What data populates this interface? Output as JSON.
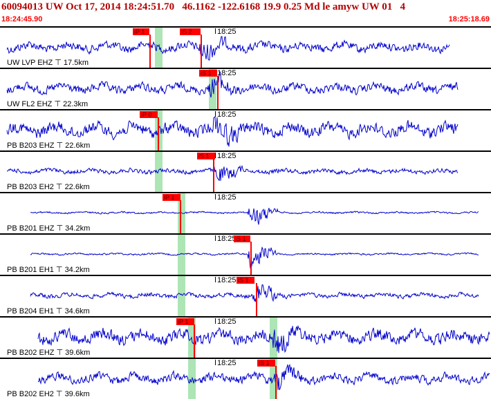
{
  "header": {
    "title": "60094013 UW Oct 17, 2014 18:24:51.70   46.1162 -122.6168 19.9 0.25 Md le amyw UW 01   4",
    "time_start": "18:24:45.90",
    "time_end": "18:25:18.69"
  },
  "colors": {
    "trace": "#0000cc",
    "pick": "#ff0000",
    "shade": "#9fe0a8",
    "title": "#b30000"
  },
  "panels": [
    {
      "label": "UW LVP EHZ",
      "dist": "17.5km",
      "time_mark": "18:25",
      "picks": [
        {
          "text": "iP 1"
        },
        {
          "text": "iS 2"
        }
      ],
      "wave_start": 0.0,
      "event": 0.41,
      "amp": "medium"
    },
    {
      "label": "UW FL2 EHZ",
      "dist": "22.3km",
      "time_mark": "18:25",
      "picks": [
        {
          "text": "iS 1"
        }
      ],
      "wave_start": 0.0,
      "event": 0.43,
      "amp": "medium"
    },
    {
      "label": "PB B203 EHZ",
      "dist": "22.6km",
      "time_mark": "18:25",
      "picks": [
        {
          "text": "iP 0"
        }
      ],
      "wave_start": 0.0,
      "event": 0.44,
      "amp": "high"
    },
    {
      "label": "PB B203 EH2",
      "dist": "22.6km",
      "time_mark": "18:25",
      "picks": [
        {
          "text": "iS 1"
        }
      ],
      "wave_start": 0.0,
      "event": 0.44,
      "amp": "low"
    },
    {
      "label": "PB B201 EHZ",
      "dist": "34.2km",
      "time_mark": "18:25",
      "picks": [
        {
          "text": "iP 1"
        }
      ],
      "wave_start": 0.06,
      "event": 0.51,
      "amp": "flat"
    },
    {
      "label": "PB B201 EH1",
      "dist": "34.2km",
      "time_mark": "18:25",
      "picks": [
        {
          "text": "iS 1"
        }
      ],
      "wave_start": 0.06,
      "event": 0.51,
      "amp": "flat"
    },
    {
      "label": "PB B204 EH1",
      "dist": "34.6km",
      "time_mark": "18:25",
      "picks": [
        {
          "text": "iS 1"
        }
      ],
      "wave_start": 0.06,
      "event": 0.52,
      "amp": "low"
    },
    {
      "label": "PB B202 EHZ",
      "dist": "39.6km",
      "time_mark": "18:25",
      "picks": [
        {
          "text": "iP 1"
        }
      ],
      "wave_start": 0.08,
      "event": 0.56,
      "amp": "high"
    },
    {
      "label": "PB B202 EH2",
      "dist": "39.6km",
      "time_mark": "18:25",
      "picks": [
        {
          "text": "iS 1"
        }
      ],
      "wave_start": 0.08,
      "event": 0.56,
      "amp": "medium"
    }
  ]
}
